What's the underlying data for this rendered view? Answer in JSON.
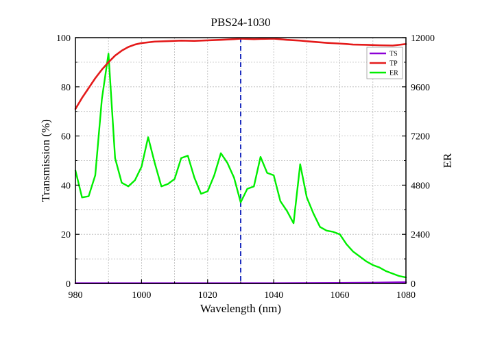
{
  "chart_data": {
    "type": "line",
    "title": "PBS24-1030",
    "xlabel": "Wavelength (nm)",
    "ylabel": "Transmission (%)",
    "y2label": "ER",
    "xlim": [
      980,
      1080
    ],
    "ylim": [
      0,
      100
    ],
    "y2lim": [
      0,
      12000
    ],
    "xticks": [
      "980",
      "1000",
      "1020",
      "1040",
      "1060",
      "1080"
    ],
    "yticks": [
      "0",
      "20",
      "40",
      "60",
      "80",
      "100"
    ],
    "y2ticks": [
      "0",
      "2400",
      "4800",
      "7200",
      "9600",
      "12000"
    ],
    "grid": true,
    "legend_position": "top-right",
    "marker_line": {
      "x": 1030,
      "style": "dashed",
      "color": "#1f2fbf"
    },
    "series": [
      {
        "name": "TS",
        "axis": "left",
        "color": "#8b00d6",
        "x": [
          980,
          1000,
          1020,
          1040,
          1060,
          1070,
          1080
        ],
        "y": [
          0.1,
          0.1,
          0.1,
          0.1,
          0.2,
          0.3,
          0.5
        ]
      },
      {
        "name": "TP",
        "axis": "left",
        "color": "#e41a1a",
        "x": [
          980,
          982,
          984,
          986,
          988,
          990,
          992,
          994,
          996,
          998,
          1000,
          1004,
          1008,
          1012,
          1016,
          1020,
          1024,
          1028,
          1030,
          1034,
          1036,
          1040,
          1044,
          1048,
          1052,
          1056,
          1060,
          1064,
          1068,
          1072,
          1076,
          1080
        ],
        "y": [
          71,
          75.5,
          79.5,
          83.5,
          87,
          90,
          92.7,
          94.7,
          96.2,
          97.2,
          97.8,
          98.4,
          98.6,
          98.8,
          98.7,
          98.9,
          99.1,
          99.4,
          99.6,
          99.4,
          99.5,
          99.6,
          99.1,
          98.8,
          98.3,
          97.9,
          97.6,
          97.2,
          97.1,
          96.9,
          96.8,
          97.4
        ]
      },
      {
        "name": "ER",
        "axis": "right",
        "color": "#00ee00",
        "x": [
          980,
          982,
          984,
          986,
          988,
          990,
          992,
          994,
          996,
          998,
          1000,
          1002,
          1004,
          1006,
          1008,
          1010,
          1012,
          1014,
          1016,
          1018,
          1020,
          1022,
          1024,
          1026,
          1028,
          1030,
          1032,
          1034,
          1036,
          1038,
          1040,
          1042,
          1044,
          1046,
          1048,
          1050,
          1052,
          1054,
          1056,
          1058,
          1060,
          1062,
          1064,
          1066,
          1068,
          1070,
          1072,
          1074,
          1076,
          1078,
          1080
        ],
        "y": [
          5520,
          4200,
          4260,
          5280,
          9000,
          11220,
          6120,
          4920,
          4740,
          5040,
          5700,
          7140,
          5880,
          4740,
          4860,
          5100,
          6120,
          6240,
          5160,
          4380,
          4500,
          5280,
          6360,
          5880,
          5160,
          3960,
          4620,
          4740,
          6180,
          5400,
          5280,
          4020,
          3540,
          2940,
          5820,
          4200,
          3420,
          2760,
          2580,
          2520,
          2400,
          1920,
          1560,
          1320,
          1080,
          900,
          780,
          600,
          480,
          360,
          300
        ]
      }
    ]
  }
}
